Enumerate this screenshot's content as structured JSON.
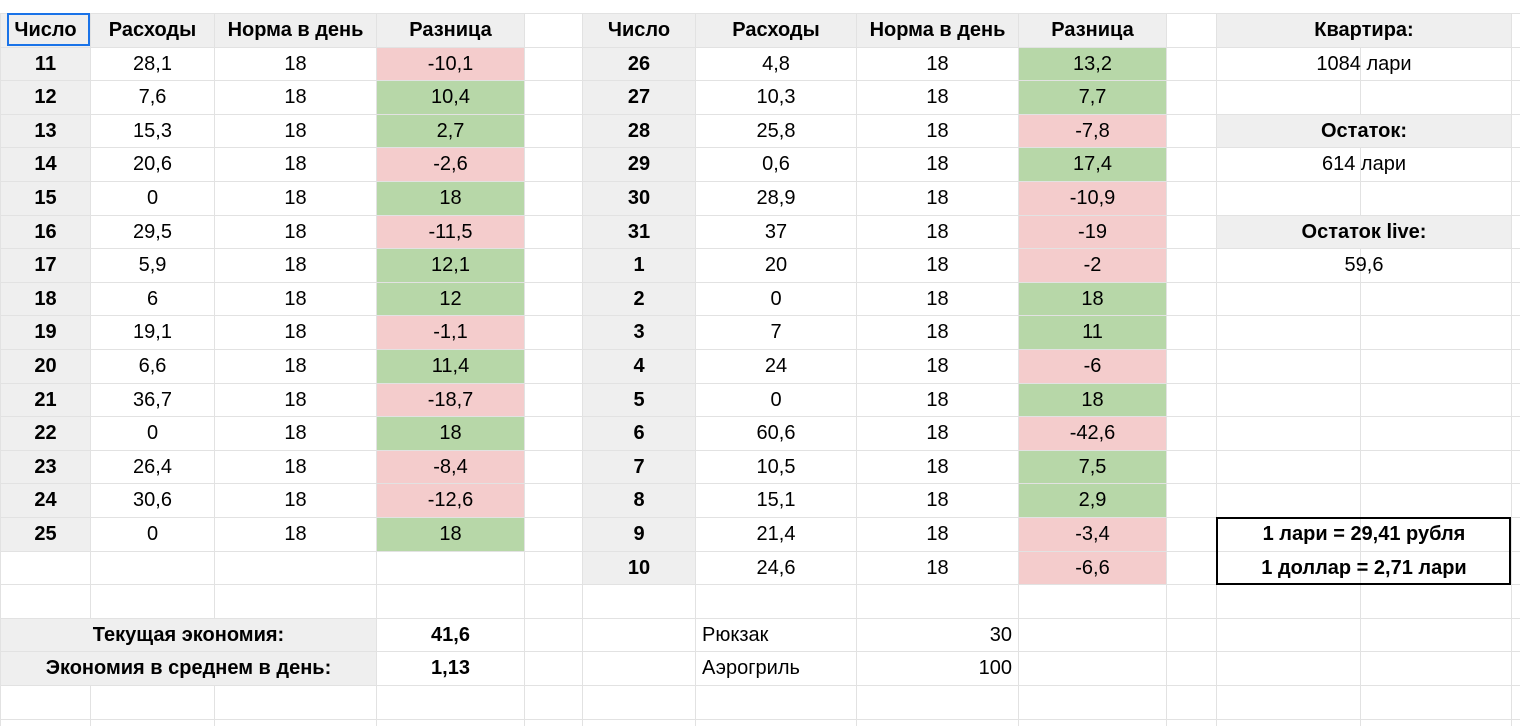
{
  "left_table": {
    "headers": [
      "Число",
      "Расходы",
      "Норма в день",
      "Разница"
    ],
    "rows": [
      [
        "11",
        "28,1",
        "18",
        "-10,1"
      ],
      [
        "12",
        "7,6",
        "18",
        "10,4"
      ],
      [
        "13",
        "15,3",
        "18",
        "2,7"
      ],
      [
        "14",
        "20,6",
        "18",
        "-2,6"
      ],
      [
        "15",
        "0",
        "18",
        "18"
      ],
      [
        "16",
        "29,5",
        "18",
        "-11,5"
      ],
      [
        "17",
        "5,9",
        "18",
        "12,1"
      ],
      [
        "18",
        "6",
        "18",
        "12"
      ],
      [
        "19",
        "19,1",
        "18",
        "-1,1"
      ],
      [
        "20",
        "6,6",
        "18",
        "11,4"
      ],
      [
        "21",
        "36,7",
        "18",
        "-18,7"
      ],
      [
        "22",
        "0",
        "18",
        "18"
      ],
      [
        "23",
        "26,4",
        "18",
        "-8,4"
      ],
      [
        "24",
        "30,6",
        "18",
        "-12,6"
      ],
      [
        "25",
        "0",
        "18",
        "18"
      ]
    ]
  },
  "right_table": {
    "headers": [
      "Число",
      "Расходы",
      "Норма в день",
      "Разница"
    ],
    "rows": [
      [
        "26",
        "4,8",
        "18",
        "13,2"
      ],
      [
        "27",
        "10,3",
        "18",
        "7,7"
      ],
      [
        "28",
        "25,8",
        "18",
        "-7,8"
      ],
      [
        "29",
        "0,6",
        "18",
        "17,4"
      ],
      [
        "30",
        "28,9",
        "18",
        "-10,9"
      ],
      [
        "31",
        "37",
        "18",
        "-19"
      ],
      [
        "1",
        "20",
        "18",
        "-2"
      ],
      [
        "2",
        "0",
        "18",
        "18"
      ],
      [
        "3",
        "7",
        "18",
        "11"
      ],
      [
        "4",
        "24",
        "18",
        "-6"
      ],
      [
        "5",
        "0",
        "18",
        "18"
      ],
      [
        "6",
        "60,6",
        "18",
        "-42,6"
      ],
      [
        "7",
        "10,5",
        "18",
        "7,5"
      ],
      [
        "8",
        "15,1",
        "18",
        "2,9"
      ],
      [
        "9",
        "21,4",
        "18",
        "-3,4"
      ],
      [
        "10",
        "24,6",
        "18",
        "-6,6"
      ]
    ]
  },
  "summary": {
    "current_savings_label": "Текущая экономия:",
    "current_savings_value": "41,6",
    "avg_savings_label": "Экономия в среднем в день:",
    "avg_savings_value": "1,13"
  },
  "planned": [
    {
      "item": "Рюкзак",
      "cost": "30"
    },
    {
      "item": "Аэрогриль",
      "cost": "100"
    }
  ],
  "side_panel": {
    "apartment_label": "Квартира:",
    "apartment_value": "1084 лари",
    "balance_label": "Остаток:",
    "balance_value": "614 лари",
    "balance_live_label": "Остаток live:",
    "balance_live_value": "59,6"
  },
  "rates": {
    "lari_rub": "1 лари = 29,41 рубля",
    "usd_lari": "1 доллар = 2,71 лари"
  },
  "colors": {
    "positive_fill": "#b7d7a8",
    "negative_fill": "#f4cccc",
    "header_fill": "#efefef",
    "selection": "#1a73e8"
  }
}
